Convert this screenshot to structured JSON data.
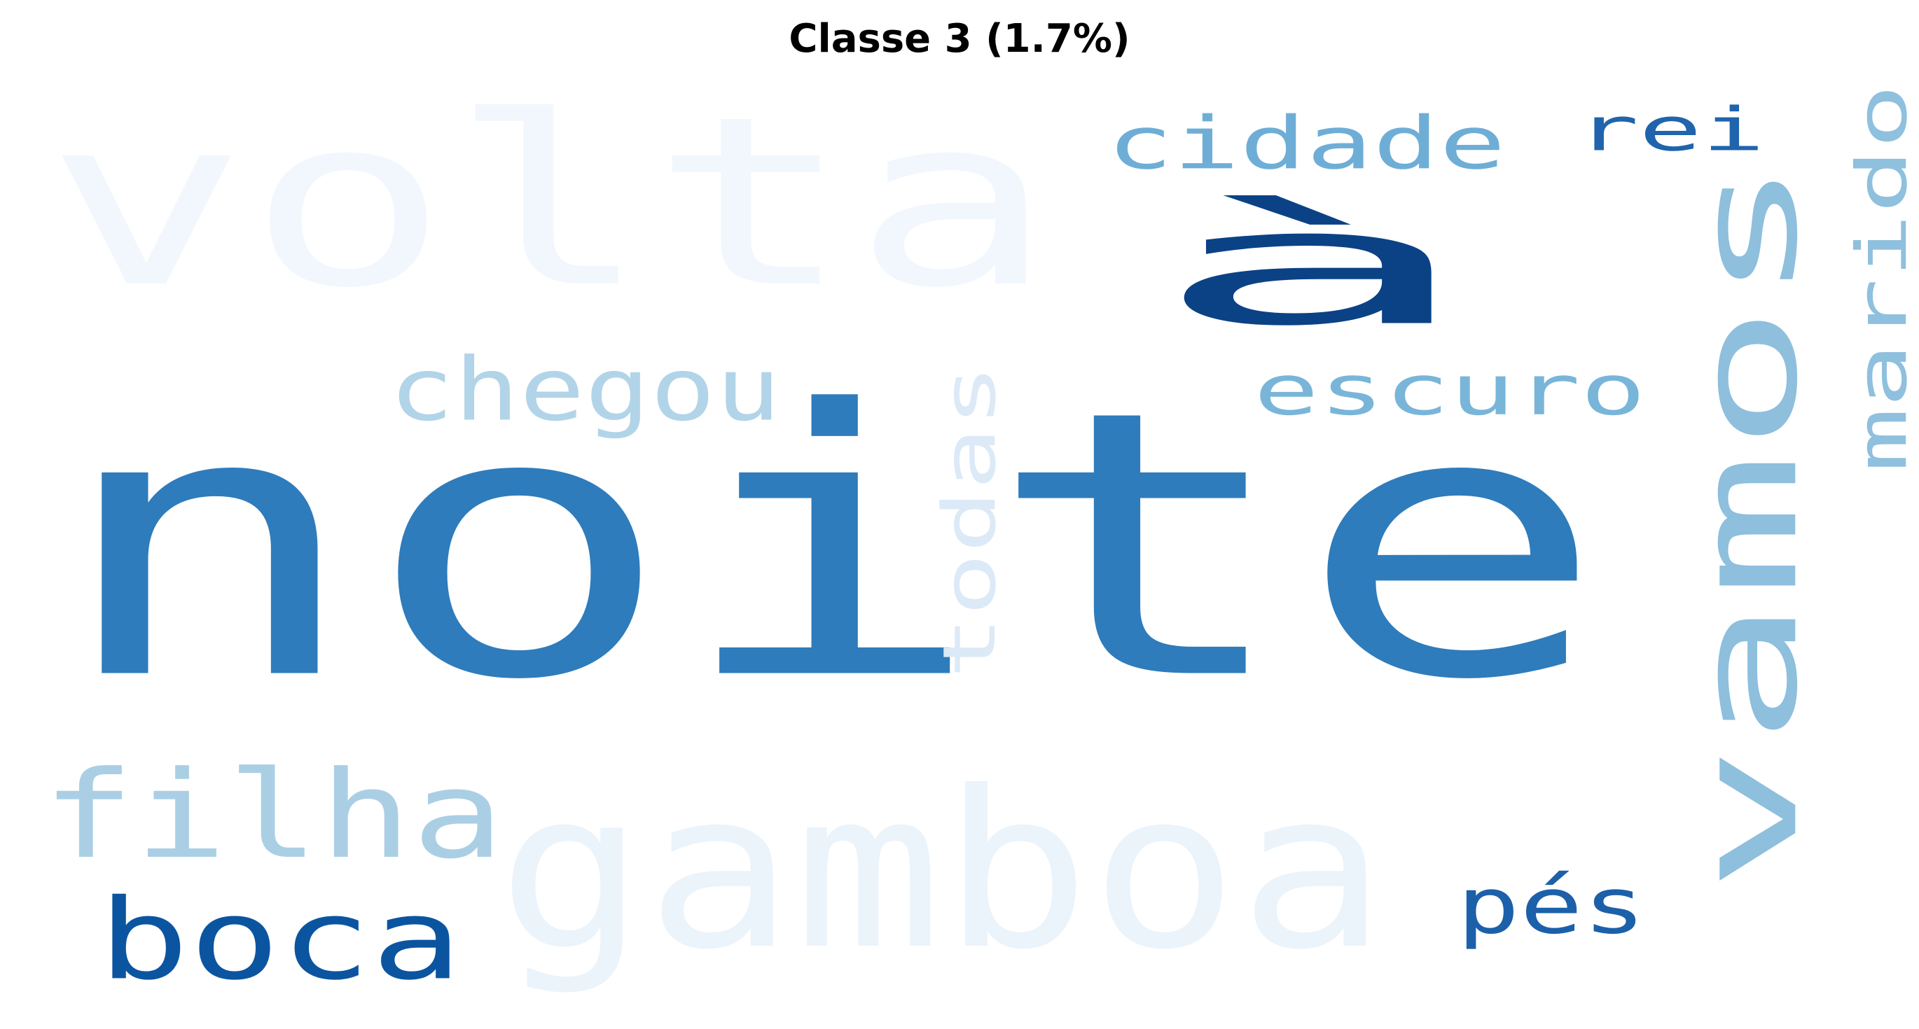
{
  "title": "Classe 3 (1.7%)",
  "colormap": "Blues",
  "words": [
    {
      "text": "volta",
      "color": "#f1f7fd",
      "orientation": "horizontal"
    },
    {
      "text": "noite",
      "color": "#2e7cbc",
      "orientation": "horizontal"
    },
    {
      "text": "à",
      "color": "#0b4285",
      "orientation": "horizontal"
    },
    {
      "text": "gamboa",
      "color": "#ebf3fb",
      "orientation": "horizontal"
    },
    {
      "text": "vamos",
      "color": "#8ebfdd",
      "orientation": "vertical"
    },
    {
      "text": "filha",
      "color": "#aacfe5",
      "orientation": "horizontal"
    },
    {
      "text": "boca",
      "color": "#0b55a0",
      "orientation": "horizontal"
    },
    {
      "text": "chegou",
      "color": "#b2d4e8",
      "orientation": "horizontal"
    },
    {
      "text": "cidade",
      "color": "#6eaed6",
      "orientation": "horizontal"
    },
    {
      "text": "rei",
      "color": "#1f64ad",
      "orientation": "horizontal"
    },
    {
      "text": "marido",
      "color": "#8fc0de",
      "orientation": "vertical"
    },
    {
      "text": "escuro",
      "color": "#79b5d9",
      "orientation": "horizontal"
    },
    {
      "text": "todas",
      "color": "#dce9f6",
      "orientation": "vertical"
    },
    {
      "text": "pés",
      "color": "#1c60aa",
      "orientation": "horizontal"
    }
  ]
}
